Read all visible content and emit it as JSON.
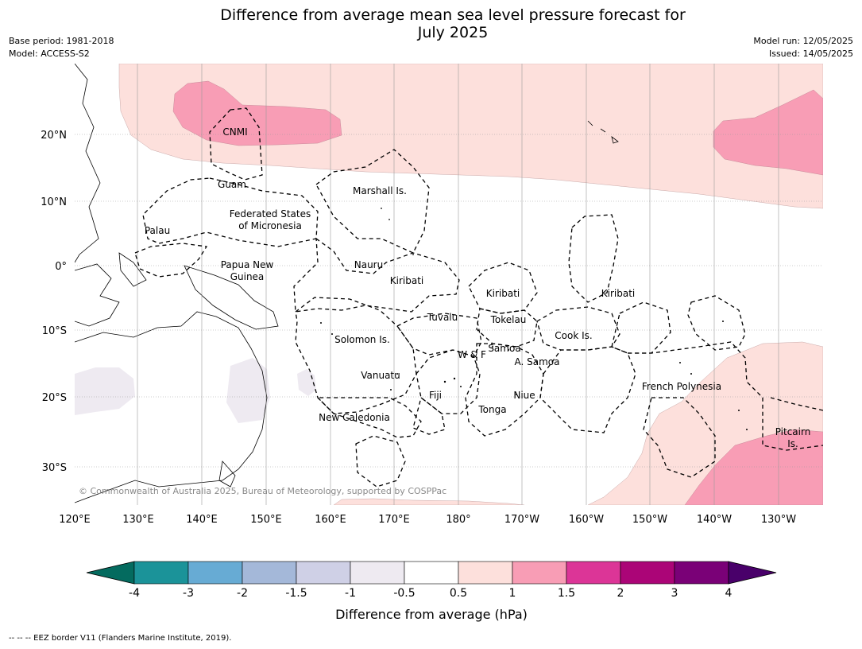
{
  "title_line1": "Difference from average mean sea level pressure forecast for",
  "title_line2": "July 2025",
  "base_period": "Base period: 1981-2018",
  "model": "Model: ACCESS-S2",
  "model_run": "Model run: 12/05/2025",
  "issued": "Issued: 14/05/2025",
  "copyright": "© Commonwealth of Australia 2025, Bureau of Meteorology, supported by COSPPac",
  "lon_ticks": [
    "120°E",
    "130°E",
    "140°E",
    "150°E",
    "160°E",
    "170°E",
    "180°",
    "170°W",
    "160°W",
    "150°W",
    "140°W",
    "130°W"
  ],
  "lat_ticks": [
    "20°N",
    "10°N",
    "0°",
    "10°S",
    "20°S",
    "30°S"
  ],
  "region_labels": {
    "cnmi": "CNMI",
    "guam": "Guam",
    "marshall": "Marshall Is.",
    "fsm1": "Federated States",
    "fsm2": "of Micronesia",
    "palau": "Palau",
    "png1": "Papua New",
    "png2": "Guinea",
    "nauru": "Nauru",
    "kiribati_w": "Kiribati",
    "kiribati_c": "Kiribati",
    "kiribati_e": "Kiribati",
    "tuvalu": "Tuvalu",
    "tokelau": "Tokelau",
    "solomon": "Solomon Is.",
    "cook": "Cook Is.",
    "wf": "W & F",
    "samoa": "Samoa",
    "asamoa": "A. Samoa",
    "vanuatu": "Vanuatu",
    "fiji": "Fiji",
    "niue": "Niue",
    "tonga": "Tonga",
    "frenchpoly": "French Polynesia",
    "newcal": "New Caledonia",
    "pitcairn1": "Pitcairn",
    "pitcairn2": "Is."
  },
  "colorbar": {
    "ticks": [
      "-4",
      "-3",
      "-2",
      "-1.5",
      "-1",
      "-0.5",
      "0.5",
      "1",
      "1.5",
      "2",
      "3",
      "4"
    ],
    "colors": [
      "#046b5f",
      "#1b9399",
      "#67abd4",
      "#a4b8d9",
      "#cfd0e6",
      "#eeeaf1",
      "#ffffff",
      "#fde0dc",
      "#f89db5",
      "#dc3597",
      "#ab0577",
      "#7a0177",
      "#49006a"
    ],
    "label": "Difference from average (hPa)"
  },
  "footnote": "--  --  -- EEZ border V11 (Flanders Marine Institute, 2019)."
}
